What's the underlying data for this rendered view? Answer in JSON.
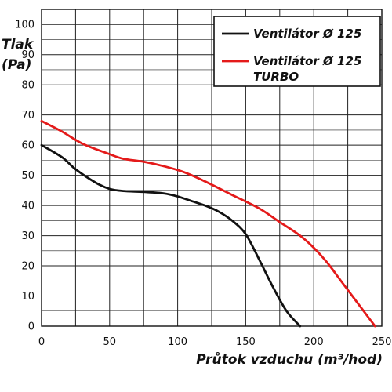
{
  "chart_data": {
    "type": "line",
    "ylabel_lines": [
      "Tlak",
      "(Pa)"
    ],
    "xlabel": "Průtok vzduchu (m³/hod)",
    "xlim": [
      0,
      250
    ],
    "ylim": [
      0,
      105
    ],
    "x_ticks": [
      "0",
      "50",
      "100",
      "150",
      "200",
      "250"
    ],
    "y_ticks": [
      "0",
      "10",
      "20",
      "30",
      "40",
      "50",
      "60",
      "70",
      "80",
      "90",
      "100"
    ],
    "grid": true,
    "legend_position": "top-right",
    "series": [
      {
        "legend_lines": [
          "Ventilátor Ø 125"
        ],
        "color": "#111111",
        "points": [
          [
            0,
            60
          ],
          [
            15,
            56
          ],
          [
            25,
            52
          ],
          [
            40,
            47.5
          ],
          [
            50,
            45.5
          ],
          [
            60,
            44.8
          ],
          [
            75,
            44.5
          ],
          [
            90,
            44
          ],
          [
            100,
            43
          ],
          [
            110,
            41.5
          ],
          [
            120,
            40
          ],
          [
            130,
            38
          ],
          [
            140,
            35
          ],
          [
            150,
            30.5
          ],
          [
            160,
            22
          ],
          [
            170,
            13
          ],
          [
            180,
            5
          ],
          [
            190,
            0
          ]
        ]
      },
      {
        "legend_lines": [
          "Ventilátor Ø 125",
          "TURBO"
        ],
        "color": "#e41a1a",
        "points": [
          [
            0,
            68
          ],
          [
            15,
            64.5
          ],
          [
            30,
            60.5
          ],
          [
            50,
            57
          ],
          [
            60,
            55.5
          ],
          [
            75,
            54.5
          ],
          [
            90,
            53
          ],
          [
            105,
            51
          ],
          [
            120,
            48
          ],
          [
            140,
            43.5
          ],
          [
            160,
            39
          ],
          [
            175,
            34.5
          ],
          [
            190,
            30
          ],
          [
            200,
            26
          ],
          [
            210,
            21
          ],
          [
            220,
            15
          ],
          [
            230,
            9
          ],
          [
            240,
            3
          ],
          [
            245,
            0
          ]
        ]
      }
    ]
  }
}
